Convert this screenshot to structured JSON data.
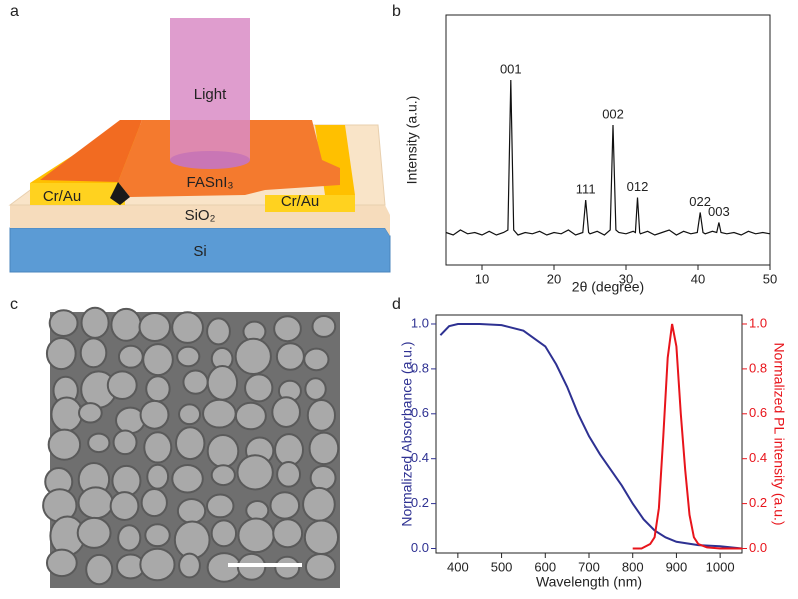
{
  "panel_labels": [
    "a",
    "b",
    "c",
    "d"
  ],
  "device_diagram": {
    "light": "Light",
    "film": "FASnI₃",
    "electrodes": [
      "Cr/Au",
      "Cr/Au"
    ],
    "layers": [
      "SiO₂",
      "Si"
    ]
  },
  "chart_data": [
    {
      "type": "line",
      "x_label": "2θ (degree)",
      "y_label": "Intensity (a.u.)",
      "xlim": [
        5,
        50
      ],
      "xticks": [
        10,
        20,
        30,
        40,
        50
      ],
      "ylim": [
        0,
        100
      ],
      "series": [
        {
          "color": "#111111",
          "x": [
            5,
            6,
            7,
            8,
            9,
            10,
            11,
            12,
            13,
            13.6,
            14,
            14.4,
            15,
            16,
            17,
            18,
            19,
            20,
            21,
            22,
            23,
            24,
            24.4,
            24.8,
            25,
            26,
            27,
            27.8,
            28.2,
            28.6,
            29,
            30,
            31,
            31.3,
            31.6,
            31.9,
            32,
            33,
            34,
            35,
            36,
            37,
            38,
            39,
            39.9,
            40.3,
            40.7,
            41,
            42,
            42.6,
            42.9,
            43.2,
            44,
            45,
            46,
            47,
            48,
            49,
            50
          ],
          "values": [
            13,
            12,
            14,
            12.5,
            13,
            12,
            13.5,
            12,
            13,
            14,
            74,
            14,
            12,
            13,
            12.5,
            13.5,
            12,
            13,
            12.5,
            14,
            12,
            13,
            26,
            13,
            12.5,
            13.5,
            12,
            14,
            56,
            14,
            13,
            12.5,
            13.5,
            13,
            27,
            13,
            12.5,
            13.5,
            12,
            13,
            14,
            12,
            13.5,
            12.5,
            13,
            21,
            13,
            12.5,
            13.5,
            13,
            17,
            13,
            12.5,
            13,
            12,
            13.5,
            12.5,
            13,
            12.5
          ]
        }
      ],
      "annotations": [
        {
          "text": "001",
          "x": 14
        },
        {
          "text": "111",
          "x": 24.4
        },
        {
          "text": "002",
          "x": 28.2
        },
        {
          "text": "012",
          "x": 31.6
        },
        {
          "text": "022",
          "x": 40.3
        },
        {
          "text": "003",
          "x": 42.9
        }
      ]
    },
    {
      "type": "line",
      "x_label": "Wavelength (nm)",
      "y_label": "Normalized Absorbance (a.u.)",
      "y2_label": "Normalized PL intensity (a.u.)",
      "xlim": [
        350,
        1050
      ],
      "xticks": [
        400,
        500,
        600,
        700,
        800,
        900,
        1000
      ],
      "ylim": [
        -0.02,
        1.04
      ],
      "yticks": [
        {
          "value": 0,
          "label": "0.0"
        },
        0.2,
        0.4,
        0.6,
        0.8,
        {
          "value": 1,
          "label": "1.0"
        }
      ],
      "y2lim": [
        -0.02,
        1.04
      ],
      "y2ticks": [
        {
          "value": 0,
          "label": "0.0"
        },
        0.2,
        0.4,
        0.6,
        0.8,
        {
          "value": 1,
          "label": "1.0"
        }
      ],
      "y_color": "#2e3192",
      "y2_color": "#e8141b",
      "series": [
        {
          "color": "#2e3192",
          "x": [
            360,
            380,
            400,
            450,
            500,
            550,
            600,
            625,
            650,
            675,
            700,
            725,
            750,
            775,
            800,
            825,
            850,
            875,
            900,
            950,
            1000,
            1050
          ],
          "values": [
            0.95,
            0.99,
            1.0,
            1.0,
            0.995,
            0.97,
            0.9,
            0.82,
            0.72,
            0.6,
            0.5,
            0.42,
            0.35,
            0.28,
            0.2,
            0.13,
            0.08,
            0.05,
            0.03,
            0.015,
            0.01,
            0.0
          ]
        },
        {
          "color": "#e8141b",
          "axis": "y2",
          "x": [
            800,
            820,
            840,
            850,
            860,
            870,
            880,
            890,
            900,
            910,
            920,
            930,
            940,
            950,
            970,
            1000,
            1050
          ],
          "values": [
            0.0,
            0.0,
            0.02,
            0.05,
            0.18,
            0.5,
            0.85,
            1.0,
            0.9,
            0.6,
            0.35,
            0.15,
            0.05,
            0.02,
            0.005,
            0.0,
            0.0
          ]
        }
      ]
    }
  ]
}
